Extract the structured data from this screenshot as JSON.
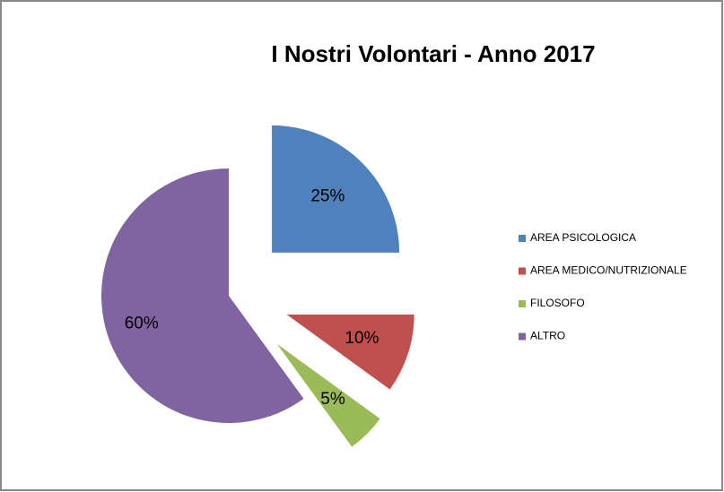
{
  "chart_data": {
    "type": "pie",
    "title": "I Nostri Volontari - Anno 2017",
    "categories": [
      "AREA PSICOLOGICA",
      "AREA MEDICO/NUTRIZIONALE",
      "FILOSOFO",
      "ALTRO"
    ],
    "values": [
      25,
      10,
      5,
      60
    ],
    "value_labels": [
      "25%",
      "10%",
      "5%",
      "60%"
    ],
    "colors": [
      "#4f81bd",
      "#c0504d",
      "#9bbb59",
      "#8064a2"
    ],
    "legend": "right"
  }
}
